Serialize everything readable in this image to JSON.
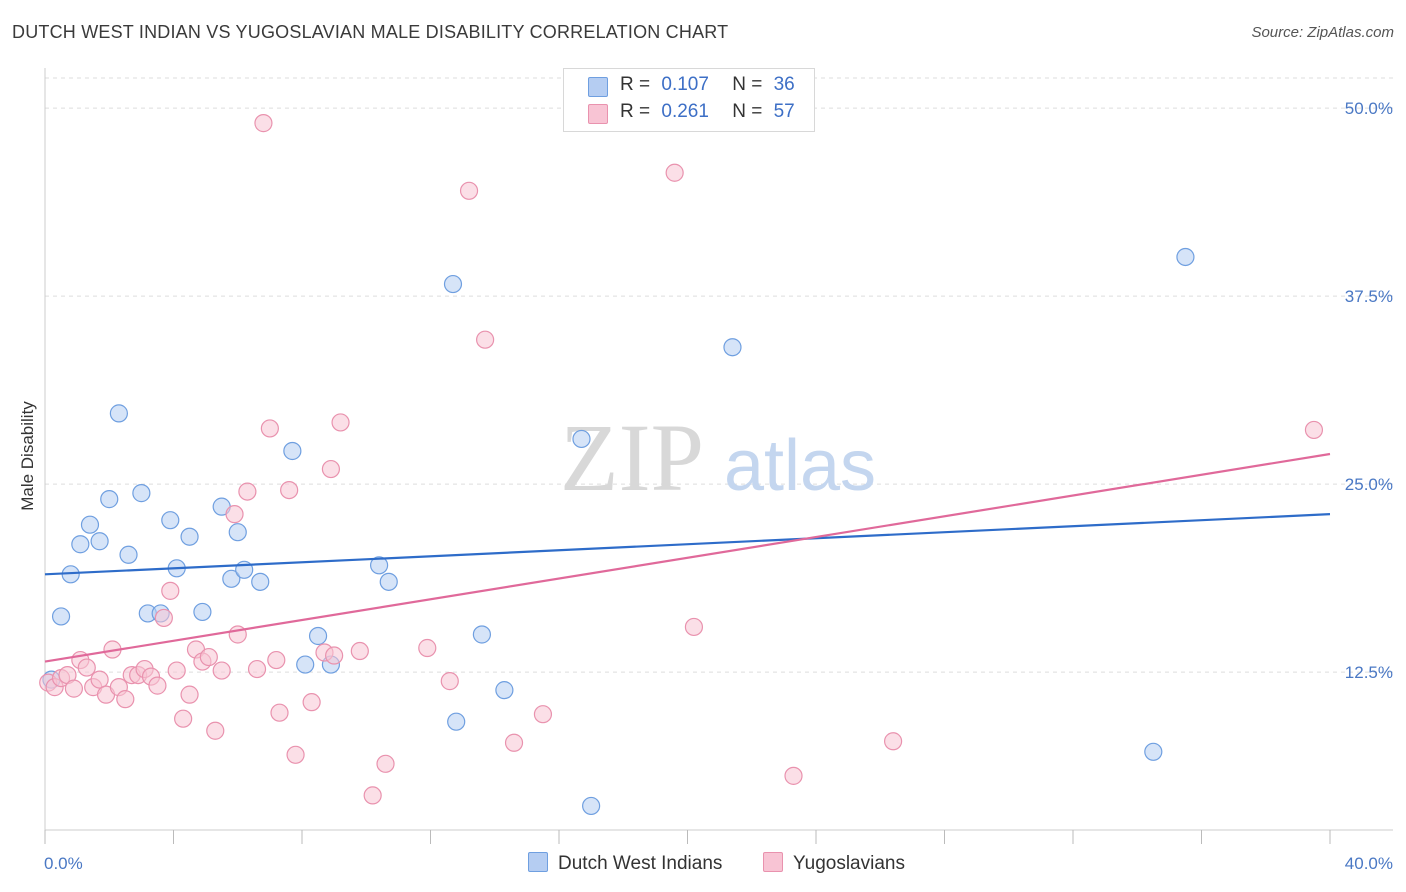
{
  "title": "DUTCH WEST INDIAN VS YUGOSLAVIAN MALE DISABILITY CORRELATION CHART",
  "source": "Source: ZipAtlas.com",
  "watermark": {
    "zip": "ZIP",
    "atlas": "atlas"
  },
  "legend": {
    "rows": [
      {
        "r_label": "R =",
        "r_value": "0.107",
        "n_label": "N =",
        "n_value": "36"
      },
      {
        "r_label": "R =",
        "r_value": "0.261",
        "n_label": "N =",
        "n_value": "57"
      }
    ]
  },
  "bottom_legend": {
    "blue": "Dutch West Indians",
    "pink": "Yugoslavians"
  },
  "colors": {
    "blue_fill": "#b5cdf2",
    "blue_stroke": "#6f9fe0",
    "blue_line": "#2e6cc9",
    "pink_fill": "#f8c4d4",
    "pink_stroke": "#e992ae",
    "pink_line": "#e0699a",
    "tick_label": "#4a78c4",
    "grid": "#dddddd"
  },
  "chart_data": {
    "type": "scatter",
    "title": "DUTCH WEST INDIAN VS YUGOSLAVIAN MALE DISABILITY CORRELATION CHART",
    "ylabel": "Male Disability",
    "xlim": [
      0,
      40
    ],
    "ylim": [
      2,
      52
    ],
    "x_tick_labels": [
      "0.0%",
      "40.0%"
    ],
    "y_ticks": [
      12.5,
      25.0,
      37.5,
      50.0
    ],
    "y_tick_labels": [
      "12.5%",
      "25.0%",
      "37.5%",
      "50.0%"
    ],
    "grid": true,
    "series": [
      {
        "name": "Dutch West Indians",
        "points": [
          [
            0.2,
            12.0
          ],
          [
            0.5,
            16.2
          ],
          [
            0.8,
            19.0
          ],
          [
            1.1,
            21.0
          ],
          [
            1.4,
            22.3
          ],
          [
            1.7,
            21.2
          ],
          [
            2.0,
            24.0
          ],
          [
            2.6,
            20.3
          ],
          [
            2.3,
            29.7
          ],
          [
            3.0,
            24.4
          ],
          [
            3.2,
            16.4
          ],
          [
            3.6,
            16.4
          ],
          [
            3.9,
            22.6
          ],
          [
            4.1,
            19.4
          ],
          [
            4.5,
            21.5
          ],
          [
            4.9,
            16.5
          ],
          [
            5.5,
            23.5
          ],
          [
            5.8,
            18.7
          ],
          [
            6.0,
            21.8
          ],
          [
            6.2,
            19.3
          ],
          [
            6.7,
            18.5
          ],
          [
            7.7,
            27.2
          ],
          [
            8.1,
            13.0
          ],
          [
            8.5,
            14.9
          ],
          [
            8.9,
            13.0
          ],
          [
            10.4,
            19.6
          ],
          [
            10.7,
            18.5
          ],
          [
            12.7,
            38.3
          ],
          [
            12.8,
            9.2
          ],
          [
            13.6,
            15.0
          ],
          [
            14.3,
            11.3
          ],
          [
            16.7,
            28.0
          ],
          [
            17.0,
            3.6
          ],
          [
            21.4,
            34.1
          ],
          [
            34.5,
            7.2
          ],
          [
            35.5,
            40.1
          ]
        ]
      },
      {
        "name": "Yugoslavians",
        "points": [
          [
            0.1,
            11.8
          ],
          [
            0.3,
            11.5
          ],
          [
            0.5,
            12.1
          ],
          [
            0.7,
            12.3
          ],
          [
            0.9,
            11.4
          ],
          [
            1.1,
            13.3
          ],
          [
            1.3,
            12.8
          ],
          [
            1.5,
            11.5
          ],
          [
            1.7,
            12.0
          ],
          [
            1.9,
            11.0
          ],
          [
            2.1,
            14.0
          ],
          [
            2.3,
            11.5
          ],
          [
            2.5,
            10.7
          ],
          [
            2.7,
            12.3
          ],
          [
            2.9,
            12.3
          ],
          [
            3.1,
            12.7
          ],
          [
            3.3,
            12.2
          ],
          [
            3.5,
            11.6
          ],
          [
            3.7,
            16.1
          ],
          [
            3.9,
            17.9
          ],
          [
            4.1,
            12.6
          ],
          [
            4.3,
            9.4
          ],
          [
            4.5,
            11.0
          ],
          [
            4.7,
            14.0
          ],
          [
            4.9,
            13.2
          ],
          [
            5.1,
            13.5
          ],
          [
            5.3,
            8.6
          ],
          [
            5.5,
            12.6
          ],
          [
            5.9,
            23.0
          ],
          [
            6.0,
            15.0
          ],
          [
            6.3,
            24.5
          ],
          [
            6.6,
            12.7
          ],
          [
            6.8,
            49.0
          ],
          [
            7.0,
            28.7
          ],
          [
            7.2,
            13.3
          ],
          [
            7.3,
            9.8
          ],
          [
            7.6,
            24.6
          ],
          [
            7.8,
            7.0
          ],
          [
            8.3,
            10.5
          ],
          [
            8.7,
            13.8
          ],
          [
            8.9,
            26.0
          ],
          [
            9.0,
            13.6
          ],
          [
            9.2,
            29.1
          ],
          [
            9.8,
            13.9
          ],
          [
            10.2,
            4.3
          ],
          [
            10.6,
            6.4
          ],
          [
            11.9,
            14.1
          ],
          [
            12.6,
            11.9
          ],
          [
            13.2,
            44.5
          ],
          [
            13.7,
            34.6
          ],
          [
            14.6,
            7.8
          ],
          [
            15.5,
            9.7
          ],
          [
            19.6,
            45.7
          ],
          [
            20.2,
            15.5
          ],
          [
            23.3,
            5.6
          ],
          [
            26.4,
            7.9
          ],
          [
            39.5,
            28.6
          ]
        ]
      }
    ],
    "trend_lines": [
      {
        "name": "Dutch West Indians",
        "x": [
          0,
          40
        ],
        "y": [
          19.0,
          23.0
        ]
      },
      {
        "name": "Yugoslavians",
        "x": [
          0,
          40
        ],
        "y": [
          13.2,
          27.0
        ]
      }
    ]
  }
}
